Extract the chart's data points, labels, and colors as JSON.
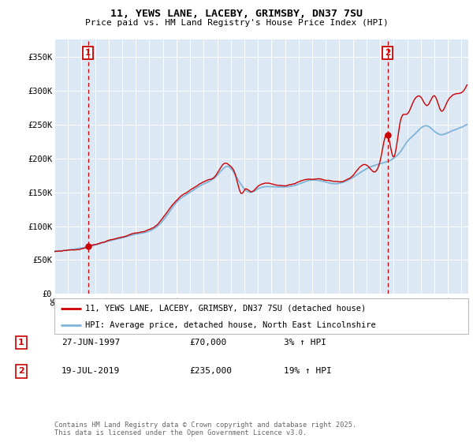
{
  "title_line1": "11, YEWS LANE, LACEBY, GRIMSBY, DN37 7SU",
  "title_line2": "Price paid vs. HM Land Registry's House Price Index (HPI)",
  "bg_color": "#dde8f5",
  "grid_color": "#ffffff",
  "red_line_color": "#cc0000",
  "blue_line_color": "#7fb4d8",
  "sale1_date": 1997.49,
  "sale1_price": 70000,
  "sale1_label": "1",
  "sale2_date": 2019.55,
  "sale2_price": 235000,
  "sale2_label": "2",
  "legend_line1": "11, YEWS LANE, LACEBY, GRIMSBY, DN37 7SU (detached house)",
  "legend_line2": "HPI: Average price, detached house, North East Lincolnshire",
  "table_row1": [
    "1",
    "27-JUN-1997",
    "£70,000",
    "3% ↑ HPI"
  ],
  "table_row2": [
    "2",
    "19-JUL-2019",
    "£235,000",
    "19% ↑ HPI"
  ],
  "footer": "Contains HM Land Registry data © Crown copyright and database right 2025.\nThis data is licensed under the Open Government Licence v3.0.",
  "ylim": [
    0,
    375000
  ],
  "xlim_start": 1995.0,
  "xlim_end": 2025.5,
  "yticks": [
    0,
    50000,
    100000,
    150000,
    200000,
    250000,
    300000,
    350000
  ],
  "ytick_labels": [
    "£0",
    "£50K",
    "£100K",
    "£150K",
    "£200K",
    "£250K",
    "£300K",
    "£350K"
  ]
}
